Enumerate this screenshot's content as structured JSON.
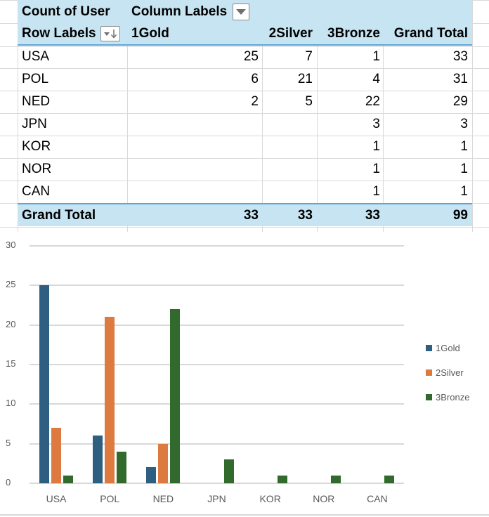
{
  "pivot": {
    "value_field": "Count of User",
    "column_labels": "Column Labels",
    "row_labels": "Row Labels",
    "columns": [
      "1Gold",
      "2Silver",
      "3Bronze",
      "Grand Total"
    ],
    "rows": [
      {
        "label": "USA",
        "gold": "25",
        "silver": "7",
        "bronze": "1",
        "total": "33"
      },
      {
        "label": "POL",
        "gold": "6",
        "silver": "21",
        "bronze": "4",
        "total": "31"
      },
      {
        "label": "NED",
        "gold": "2",
        "silver": "5",
        "bronze": "22",
        "total": "29"
      },
      {
        "label": "JPN",
        "gold": "",
        "silver": "",
        "bronze": "3",
        "total": "3"
      },
      {
        "label": "KOR",
        "gold": "",
        "silver": "",
        "bronze": "1",
        "total": "1"
      },
      {
        "label": "NOR",
        "gold": "",
        "silver": "",
        "bronze": "1",
        "total": "1"
      },
      {
        "label": "CAN",
        "gold": "",
        "silver": "",
        "bronze": "1",
        "total": "1"
      }
    ],
    "grand_total": {
      "label": "Grand Total",
      "gold": "33",
      "silver": "33",
      "bronze": "33",
      "total": "99"
    },
    "colors": {
      "header_bg": "#c7e4f2",
      "header_border": "#5ba6d8"
    }
  },
  "chart_data": {
    "type": "bar",
    "title": "",
    "xlabel": "",
    "ylabel": "",
    "categories": [
      "USA",
      "POL",
      "NED",
      "JPN",
      "KOR",
      "NOR",
      "CAN"
    ],
    "series": [
      {
        "name": "1Gold",
        "color": "#2e5f80",
        "values": [
          25,
          6,
          2,
          0,
          0,
          0,
          0
        ]
      },
      {
        "name": "2Silver",
        "color": "#dc7a40",
        "values": [
          7,
          21,
          5,
          0,
          0,
          0,
          0
        ]
      },
      {
        "name": "3Bronze",
        "color": "#32692d",
        "values": [
          1,
          4,
          22,
          3,
          1,
          1,
          1
        ]
      }
    ],
    "ylim": [
      0,
      30
    ],
    "yticks": [
      "0",
      "5",
      "10",
      "15",
      "20",
      "25",
      "30"
    ],
    "grid": true,
    "legend_position": "right"
  }
}
